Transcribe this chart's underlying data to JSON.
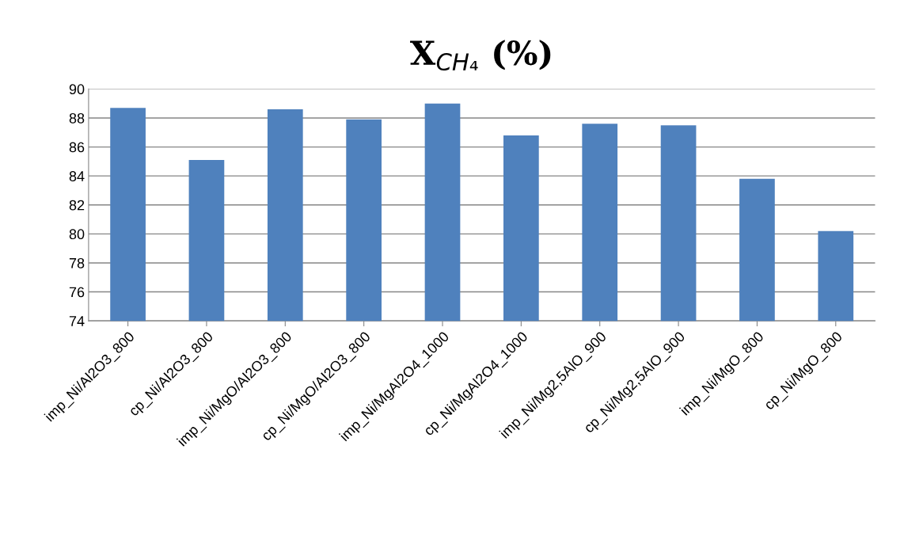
{
  "chart_data": {
    "type": "bar",
    "title": "X$_{CH₄}$ (%)",
    "categories": [
      "imp_Ni/Al2O3_800",
      "cp_Ni/Al2O3_800",
      "imp_Ni/MgO/Al2O3_800",
      "cp_Ni/MgO/Al2O3_800",
      "imp_Ni/MgAl2O4_1000",
      "cp_Ni/MgAl2O4_1000",
      "imp_Ni/Mg2,5AlO_900",
      "cp_Ni/Mg2,5AlO_900",
      "imp_Ni/MgO_800",
      "cp_Ni/MgO_800"
    ],
    "values": [
      88.7,
      85.1,
      88.6,
      87.9,
      89.0,
      86.8,
      87.6,
      87.5,
      83.8,
      80.2
    ],
    "color": "#4f81bd",
    "ylim": [
      74,
      90
    ],
    "yticks": [
      74,
      76,
      78,
      80,
      82,
      84,
      86,
      88,
      90
    ],
    "grid": "y"
  }
}
